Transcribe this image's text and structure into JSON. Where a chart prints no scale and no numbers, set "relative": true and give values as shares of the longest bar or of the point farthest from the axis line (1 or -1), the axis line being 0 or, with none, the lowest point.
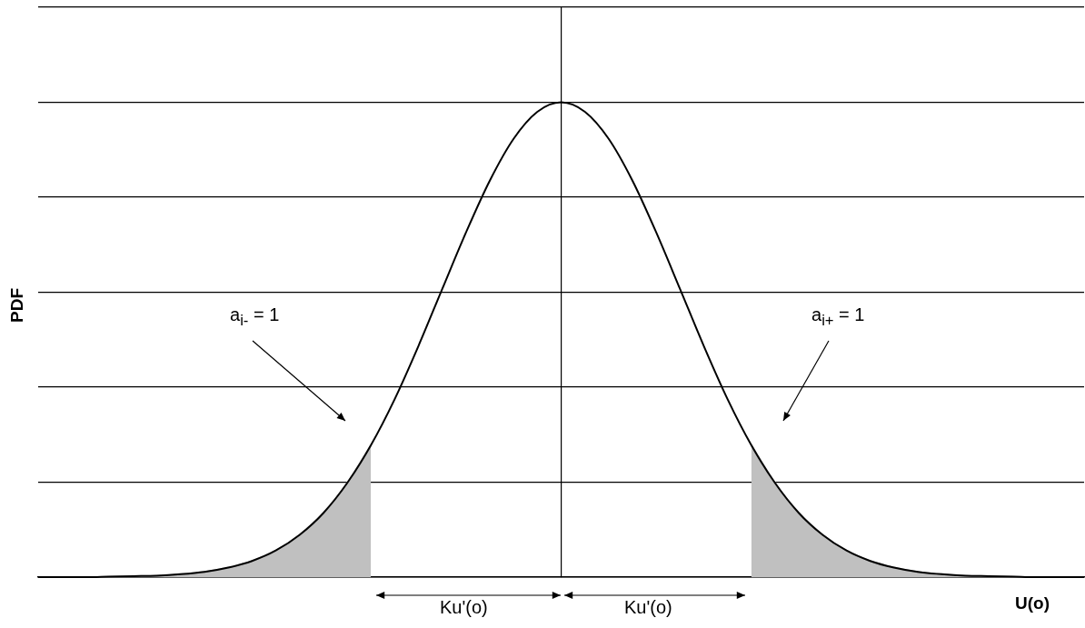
{
  "chart_data": {
    "type": "line",
    "relative": true,
    "xlabel": "U(o)",
    "ylabel": "PDF",
    "categories": [
      null,
      null,
      null,
      null,
      null,
      null,
      null,
      null,
      null,
      null,
      null,
      null,
      null,
      null,
      null,
      null,
      null,
      null,
      null,
      null,
      null,
      null,
      null,
      null,
      null,
      null,
      null,
      null,
      null,
      null,
      null,
      null,
      null,
      null,
      null,
      null,
      null,
      null,
      null,
      null,
      null,
      null,
      null,
      null,
      null
    ],
    "series": [
      {
        "type": "line",
        "color": "#000000",
        "values": [
          0,
          0,
          0,
          0.001,
          0.002,
          0.003,
          0.006,
          0.011,
          0.02,
          0.034,
          0.056,
          0.089,
          0.135,
          0.198,
          0.278,
          0.375,
          0.487,
          0.607,
          0.726,
          0.835,
          0.923,
          0.98,
          1,
          0.98,
          0.923,
          0.835,
          0.726,
          0.607,
          0.487,
          0.375,
          0.278,
          0.198,
          0.135,
          0.089,
          0.056,
          0.034,
          0.02,
          0.011,
          0.006,
          0.003,
          0.002,
          0.001,
          0,
          0,
          0
        ]
      },
      {
        "type": "area",
        "color": "#c0c0c0",
        "values": [
          0,
          0,
          0,
          0.001,
          0.002,
          0.003,
          0.006,
          0.011,
          0.02,
          0.034,
          0.056,
          0.089,
          0.135,
          0.198,
          0.278,
          null,
          null,
          null,
          null,
          null,
          null,
          null,
          null,
          null,
          null,
          null,
          null,
          null,
          null,
          null,
          null,
          null,
          null,
          null,
          null,
          null,
          null,
          null,
          null,
          null,
          null,
          null,
          null,
          null,
          null
        ]
      },
      {
        "type": "area",
        "color": "#c0c0c0",
        "values": [
          null,
          null,
          null,
          null,
          null,
          null,
          null,
          null,
          null,
          null,
          null,
          null,
          null,
          null,
          null,
          null,
          null,
          null,
          null,
          null,
          null,
          null,
          null,
          null,
          null,
          null,
          null,
          null,
          null,
          null,
          0.278,
          0.198,
          0.135,
          0.089,
          0.056,
          0.034,
          0.02,
          0.011,
          0.006,
          0.003,
          0.002,
          0.001,
          0,
          0,
          0
        ]
      }
    ],
    "annotations": [
      "a$_{i-}$ = 1",
      "a$_{i+}$ = 1",
      "Ku'(o)",
      "Ku'(o)"
    ],
    "grid": "y",
    "legend": false,
    "marker": "none",
    "line_style": "solid"
  }
}
